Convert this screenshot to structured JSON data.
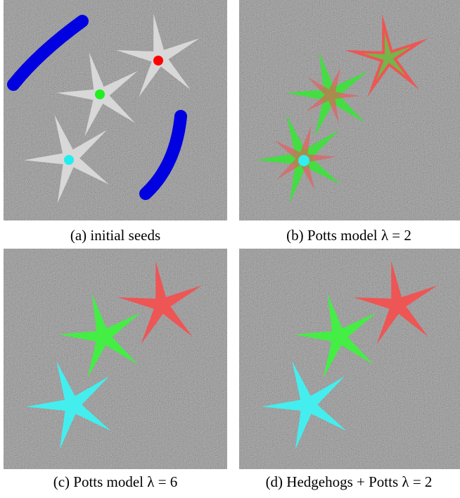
{
  "captions": [
    "(a) initial seeds",
    "(b) Potts model λ = 2",
    "(c) Potts model λ = 6",
    "(d) Hedgehogs + Potts λ = 2"
  ]
}
